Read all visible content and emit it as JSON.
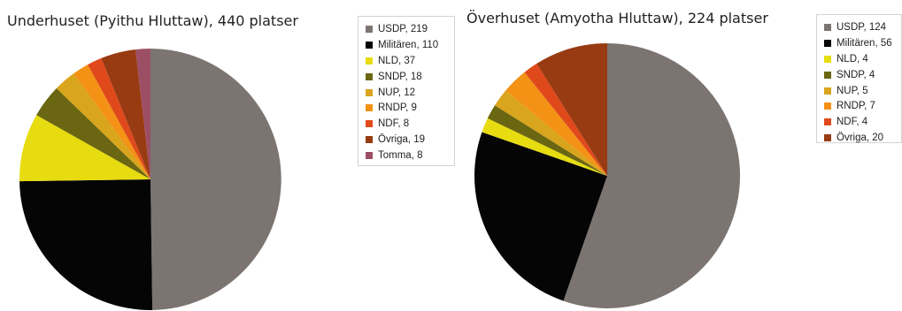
{
  "chart_data": [
    {
      "type": "pie",
      "title": "Underhuset (Pyithu Hluttaw), 440 platser",
      "legend_position": "right",
      "slices": [
        {
          "label": "USDP, 219",
          "value": 219,
          "color": "#7b7471"
        },
        {
          "label": "Militären, 110",
          "value": 110,
          "color": "#050505"
        },
        {
          "label": "NLD, 37",
          "value": 37,
          "color": "#e7dc10"
        },
        {
          "label": "SNDP, 18",
          "value": 18,
          "color": "#6b6611"
        },
        {
          "label": "NUP, 12",
          "value": 12,
          "color": "#d9a51c"
        },
        {
          "label": "RNDP, 9",
          "value": 9,
          "color": "#f39215"
        },
        {
          "label": "NDF, 8",
          "value": 8,
          "color": "#e0491b"
        },
        {
          "label": "Övriga, 19",
          "value": 19,
          "color": "#983b12"
        },
        {
          "label": "Tomma, 8",
          "value": 8,
          "color": "#9c4f64"
        }
      ]
    },
    {
      "type": "pie",
      "title": "Överhuset (Amyotha Hluttaw), 224 platser",
      "legend_position": "right",
      "slices": [
        {
          "label": "USDP, 124",
          "value": 124,
          "color": "#7b7471"
        },
        {
          "label": "Militären, 56",
          "value": 56,
          "color": "#050505"
        },
        {
          "label": "NLD, 4",
          "value": 4,
          "color": "#e7dc10"
        },
        {
          "label": "SNDP, 4",
          "value": 4,
          "color": "#6b6611"
        },
        {
          "label": "NUP, 5",
          "value": 5,
          "color": "#d9a51c"
        },
        {
          "label": "RNDP, 7",
          "value": 7,
          "color": "#f39215"
        },
        {
          "label": "NDF, 4",
          "value": 4,
          "color": "#e0491b"
        },
        {
          "label": "Övriga, 20",
          "value": 20,
          "color": "#983b12"
        }
      ]
    }
  ]
}
